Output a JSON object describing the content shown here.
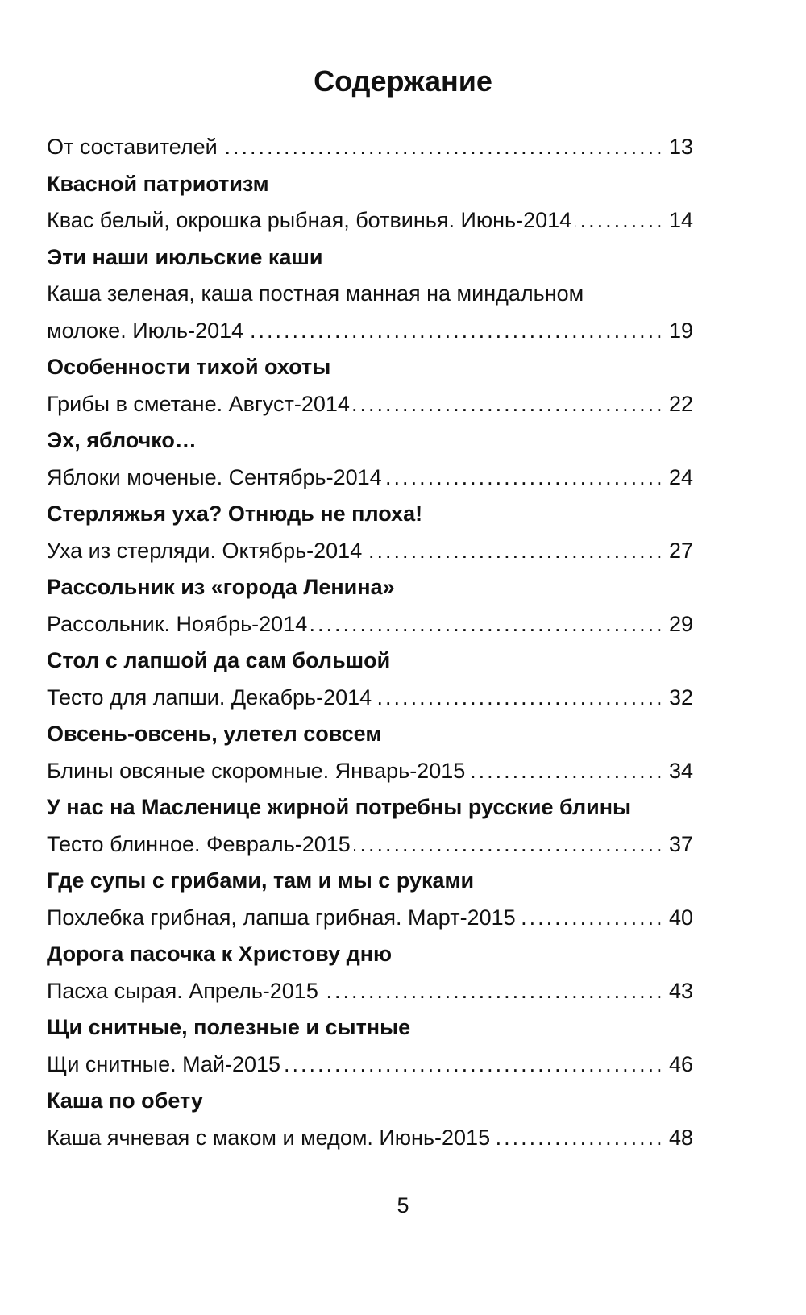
{
  "title": "Содержание",
  "intro": {
    "text": "От составителей",
    "page": 13
  },
  "sections": [
    {
      "heading": "Квасной патриотизм",
      "item": {
        "text": "Квас белый, окрошка рыбная, ботвинья. Июнь-2014",
        "page": 14
      }
    },
    {
      "heading": "Эти наши июльские каши",
      "item": {
        "text": "Каша зеленая, каша постная манная на миндальном молоке. Июль-2014",
        "page": 19
      }
    },
    {
      "heading": "Особенности тихой охоты",
      "item": {
        "text": "Грибы в сметане. Август-2014",
        "page": 22
      }
    },
    {
      "heading": "Эх, яблочко…",
      "item": {
        "text": "Яблоки моченые. Сентябрь-2014",
        "page": 24
      }
    },
    {
      "heading": "Стерляжья уха? Отнюдь не плоха!",
      "item": {
        "text": "Уха из стерляди. Октябрь-2014",
        "page": 27
      }
    },
    {
      "heading": "Рассольник из «города Ленина»",
      "item": {
        "text": "Рассольник. Ноябрь-2014",
        "page": 29
      }
    },
    {
      "heading": "Стол с лапшой да сам большой",
      "item": {
        "text": "Тесто для лапши. Декабрь-2014",
        "page": 32
      }
    },
    {
      "heading": "Овсень-овсень, улетел совсем",
      "item": {
        "text": "Блины овсяные скоромные. Январь-2015",
        "page": 34
      }
    },
    {
      "heading": "У нас на Масленице жирной потребны русские блины",
      "item": {
        "text": "Тесто блинное. Февраль-2015",
        "page": 37
      }
    },
    {
      "heading": "Где супы с грибами, там и мы с руками",
      "item": {
        "text": "Похлебка грибная, лапша грибная. Март-2015",
        "page": 40
      }
    },
    {
      "heading": "Дорога пасочка к Христову дню",
      "item": {
        "text": "Пасха сырая. Апрель-2015",
        "page": 43
      }
    },
    {
      "heading": "Щи снитные, полезные и сытные",
      "item": {
        "text": "Щи снитные. Май-2015",
        "page": 46
      }
    },
    {
      "heading": "Каша по обету",
      "item": {
        "text": "Каша ячневая с маком и медом. Июнь-2015",
        "page": 48
      }
    }
  ],
  "page_number": 5
}
